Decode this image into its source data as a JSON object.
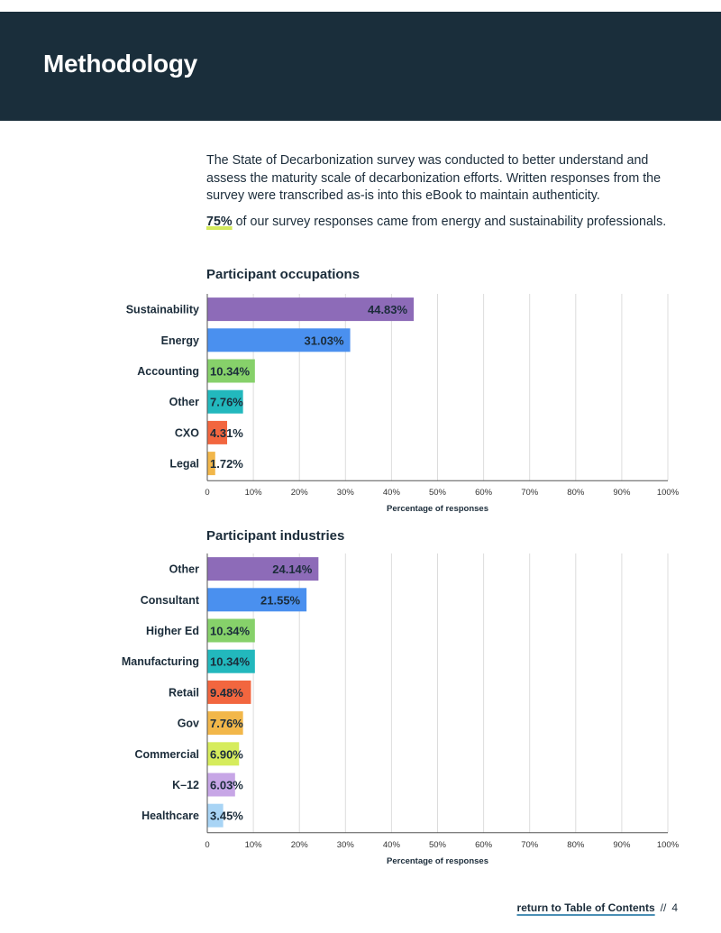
{
  "header": {
    "title": "Methodology"
  },
  "intro": {
    "paragraph": "The State of Decarbonization survey was conducted to better understand and assess the maturity scale of decarbonization efforts. Written responses from the survey were transcribed as-is into this eBook to maintain authenticity.",
    "highlight": "75%",
    "statement": " of our survey responses came from energy and sustainability professionals."
  },
  "chart_data": [
    {
      "type": "bar",
      "orientation": "horizontal",
      "title": "Participant occupations",
      "xlabel": "Percentage of responses",
      "xlim": [
        0,
        100
      ],
      "xticks": [
        "0",
        "10%",
        "20%",
        "30%",
        "40%",
        "50%",
        "60%",
        "70%",
        "80%",
        "90%",
        "100%"
      ],
      "grid": true,
      "categories": [
        "Sustainability",
        "Energy",
        "Accounting",
        "Other",
        "CXO",
        "Legal"
      ],
      "values": [
        44.83,
        31.03,
        10.34,
        7.76,
        4.31,
        1.72
      ],
      "labels": [
        "44.83%",
        "31.03%",
        "10.34%",
        "7.76%",
        "4.31%",
        "1.72%"
      ],
      "colors": [
        "#8d6bb8",
        "#4a90ef",
        "#86d16a",
        "#22b8bd",
        "#f2663f",
        "#f2b74a"
      ]
    },
    {
      "type": "bar",
      "orientation": "horizontal",
      "title": "Participant industries",
      "xlabel": "Percentage of responses",
      "xlim": [
        0,
        100
      ],
      "xticks": [
        "0",
        "10%",
        "20%",
        "30%",
        "40%",
        "50%",
        "60%",
        "70%",
        "80%",
        "90%",
        "100%"
      ],
      "grid": true,
      "categories": [
        "Other",
        "Consultant",
        "Higher Ed",
        "Manufacturing",
        "Retail",
        "Gov",
        "Commercial",
        "K–12",
        "Healthcare"
      ],
      "values": [
        24.14,
        21.55,
        10.34,
        10.34,
        9.48,
        7.76,
        6.9,
        6.03,
        3.45
      ],
      "labels": [
        "24.14%",
        "21.55%",
        "10.34%",
        "10.34%",
        "9.48%",
        "7.76%",
        "6.90%",
        "6.03%",
        "3.45%"
      ],
      "colors": [
        "#8d6bb8",
        "#4a90ef",
        "#86d16a",
        "#22b8bd",
        "#f2663f",
        "#f2b74a",
        "#d6ec5c",
        "#c7a6e6",
        "#a8d4f5"
      ]
    }
  ],
  "footer": {
    "link": "return to Table of Contents",
    "separator": "//",
    "page": "4"
  }
}
